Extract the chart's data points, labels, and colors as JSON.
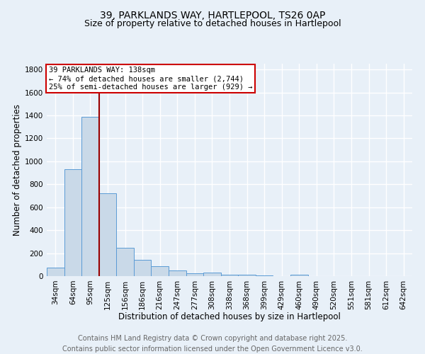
{
  "title": "39, PARKLANDS WAY, HARTLEPOOL, TS26 0AP",
  "subtitle": "Size of property relative to detached houses in Hartlepool",
  "xlabel": "Distribution of detached houses by size in Hartlepool",
  "ylabel": "Number of detached properties",
  "categories": [
    "34sqm",
    "64sqm",
    "95sqm",
    "125sqm",
    "156sqm",
    "186sqm",
    "216sqm",
    "247sqm",
    "277sqm",
    "308sqm",
    "338sqm",
    "368sqm",
    "399sqm",
    "429sqm",
    "460sqm",
    "490sqm",
    "520sqm",
    "551sqm",
    "581sqm",
    "612sqm",
    "642sqm"
  ],
  "values": [
    75,
    930,
    1390,
    720,
    245,
    140,
    88,
    52,
    25,
    30,
    12,
    10,
    5,
    0,
    12,
    0,
    0,
    0,
    0,
    0,
    0
  ],
  "bar_color": "#c9d9e8",
  "bar_edge_color": "#5b9bd5",
  "vline_x": 3.0,
  "vline_color": "#990000",
  "annotation_text": "39 PARKLANDS WAY: 138sqm\n← 74% of detached houses are smaller (2,744)\n25% of semi-detached houses are larger (929) →",
  "annotation_box_color": "#cc0000",
  "ylim": [
    0,
    1850
  ],
  "yticks": [
    0,
    200,
    400,
    600,
    800,
    1000,
    1200,
    1400,
    1600,
    1800
  ],
  "footer_line1": "Contains HM Land Registry data © Crown copyright and database right 2025.",
  "footer_line2": "Contains public sector information licensed under the Open Government Licence v3.0.",
  "background_color": "#e8f0f8",
  "plot_bg_color": "#e8f0f8",
  "grid_color": "#ffffff",
  "title_fontsize": 10,
  "subtitle_fontsize": 9,
  "axis_label_fontsize": 8.5,
  "tick_fontsize": 7.5,
  "annotation_fontsize": 7.5,
  "footer_fontsize": 7
}
